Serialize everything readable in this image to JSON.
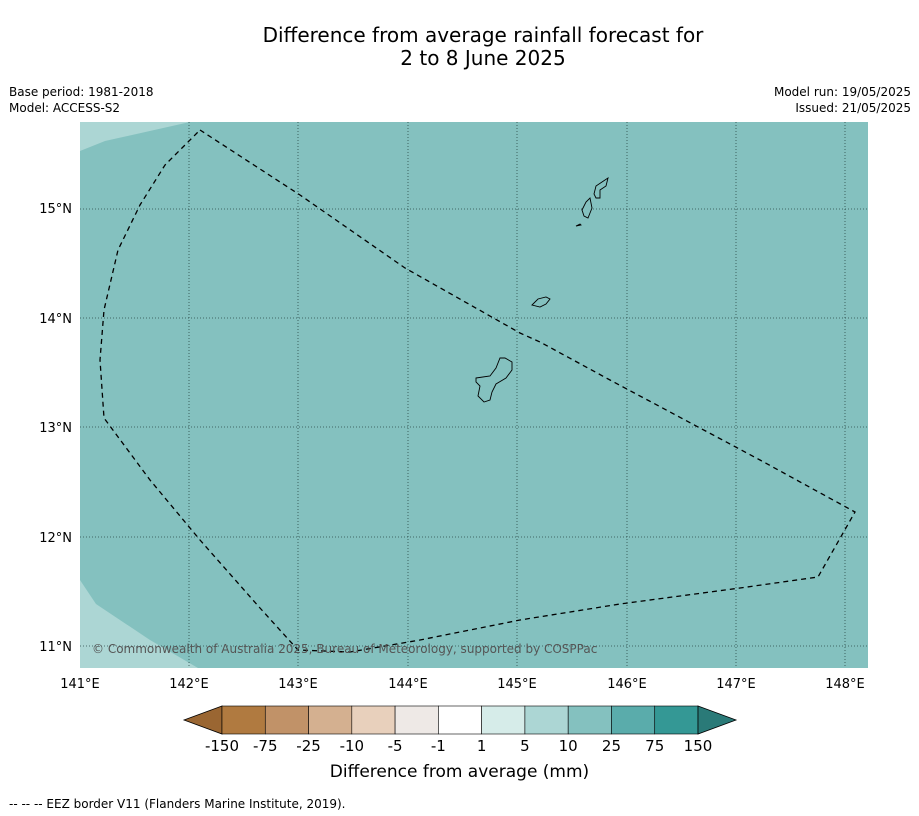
{
  "title_line1": "Difference from average rainfall forecast for",
  "title_line2": "2 to 8 June 2025",
  "base_period": "Base period: 1981-2018",
  "model": "Model: ACCESS-S2",
  "model_run": "Model run: 19/05/2025",
  "issued": "Issued: 21/05/2025",
  "copyright": "© Commonwealth of Australia 2025, Bureau of Meteorology, supported by COSPPac",
  "lat_labels": [
    "15°N",
    "14°N",
    "13°N",
    "12°N",
    "11°N"
  ],
  "lon_labels": [
    "141°E",
    "142°E",
    "143°E",
    "144°E",
    "145°E",
    "146°E",
    "147°E",
    "148°E"
  ],
  "colorbar": {
    "title": "Difference from average (mm)",
    "ticks": [
      "-150",
      "-75",
      "-25",
      "-10",
      "-5",
      "-1",
      "1",
      "5",
      "10",
      "25",
      "75",
      "150"
    ],
    "colors": [
      "#9a6632",
      "#b07a40",
      "#c19268",
      "#d4b090",
      "#e8d0bc",
      "#eee9e6",
      "#ffffff",
      "#d6ece9",
      "#acd6d4",
      "#84c1bf",
      "#5aacab",
      "#349895",
      "#2a7a78"
    ]
  },
  "map_colors": {
    "main": "#84c1bf",
    "light": "#acd6d4"
  },
  "footnote": "--  --  -- EEZ border V11 (Flanders Marine Institute, 2019)."
}
